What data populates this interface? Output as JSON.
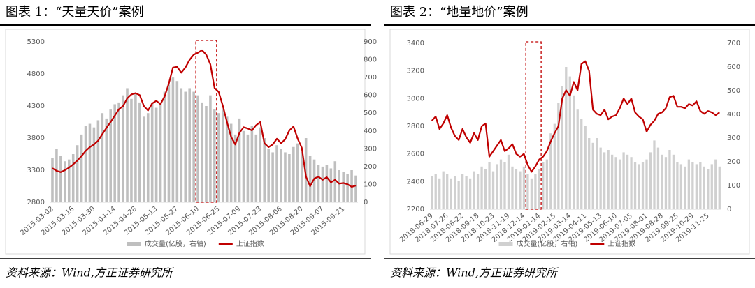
{
  "chart_data": [
    {
      "type": "bar_line",
      "title": "图表 1：“天量天价”案例",
      "source": "资料来源：Wind,方正证券研究所",
      "categories": [
        "2015-03-02",
        null,
        null,
        null,
        null,
        "2015-03-16",
        null,
        null,
        null,
        null,
        "2015-03-30",
        null,
        null,
        null,
        null,
        "2015-04-14",
        null,
        null,
        null,
        null,
        "2015-04-28",
        null,
        null,
        null,
        null,
        "2015-05-13",
        null,
        null,
        null,
        null,
        "2015-05-27",
        null,
        null,
        null,
        null,
        "2015-06-10",
        null,
        null,
        null,
        null,
        "2015-06-25",
        null,
        null,
        null,
        null,
        "2015-07-09",
        null,
        null,
        null,
        null,
        "2015-07-23",
        null,
        null,
        null,
        null,
        "2015-08-06",
        null,
        null,
        null,
        null,
        "2015-08-20",
        null,
        null,
        null,
        null,
        "2015-09-07",
        null,
        null,
        null,
        null,
        "2015-09-21",
        null,
        null,
        null
      ],
      "series": [
        {
          "name": "成交量(亿股，右轴)",
          "color": "#bfbfbf",
          "axis": "y2",
          "mark": "bar",
          "values": [
            250,
            300,
            260,
            230,
            240,
            270,
            320,
            380,
            430,
            440,
            420,
            460,
            500,
            470,
            520,
            550,
            560,
            600,
            640,
            580,
            610,
            560,
            480,
            500,
            560,
            530,
            560,
            620,
            660,
            700,
            680,
            640,
            620,
            640,
            620,
            600,
            560,
            540,
            600,
            520,
            500,
            520,
            480,
            440,
            380,
            470,
            400,
            380,
            430,
            380,
            420,
            360,
            300,
            280,
            320,
            300,
            280,
            270,
            310,
            330,
            280,
            360,
            260,
            240,
            210,
            200,
            210,
            190,
            230,
            180,
            170,
            160,
            180,
            150
          ]
        },
        {
          "name": "上证指数",
          "color": "#c00000",
          "mark": "line",
          "values": [
            3330,
            3290,
            3270,
            3300,
            3340,
            3390,
            3450,
            3520,
            3600,
            3660,
            3700,
            3760,
            3860,
            3960,
            4050,
            4150,
            4250,
            4300,
            4420,
            4480,
            4500,
            4470,
            4300,
            4230,
            4340,
            4380,
            4330,
            4450,
            4650,
            4900,
            4910,
            4820,
            4900,
            5020,
            5100,
            5130,
            5170,
            5100,
            4950,
            4580,
            4520,
            4300,
            4050,
            3820,
            3700,
            3880,
            3970,
            3950,
            3920,
            4000,
            4050,
            3720,
            3660,
            3700,
            3790,
            3720,
            3780,
            3920,
            3980,
            3790,
            3650,
            3200,
            3050,
            3170,
            3200,
            3150,
            3190,
            3110,
            3150,
            3090,
            3100,
            3080,
            3040,
            3060
          ]
        }
      ],
      "ylim": [
        2800,
        5300
      ],
      "yticks": [
        2800,
        3300,
        3800,
        4300,
        4800,
        5300
      ],
      "y2lim": [
        0,
        900
      ],
      "y2ticks": [
        0,
        100,
        200,
        300,
        400,
        500,
        600,
        700,
        800,
        900
      ]
    },
    {
      "type": "bar_line",
      "title": "图表 2：“地量地价”案例",
      "source": "资料来源：Wind,方正证券研究所",
      "categories": [
        "2018-06-29",
        null,
        null,
        null,
        "2018-07-26",
        null,
        null,
        null,
        "2018-08-22",
        null,
        null,
        null,
        "2018-09-18",
        null,
        null,
        null,
        "2018-10-23",
        null,
        null,
        null,
        "2018-11-19",
        null,
        null,
        null,
        "2018-12-14",
        null,
        null,
        null,
        "2019-01-14",
        null,
        null,
        null,
        "2019-02-15",
        null,
        null,
        null,
        "2019-03-14",
        null,
        null,
        null,
        "2019-04-11",
        null,
        null,
        null,
        "2019-05-13",
        null,
        null,
        null,
        "2019-06-10",
        null,
        null,
        null,
        "2019-07-05",
        null,
        null,
        null,
        "2019-08-01",
        null,
        null,
        null,
        "2019-08-28",
        null,
        null,
        null,
        "2019-09-25",
        null,
        null,
        null,
        "2019-10-29",
        null,
        null,
        null,
        "2019-11-25",
        null,
        null,
        null
      ],
      "series": [
        {
          "name": "成交量(亿股，右轴)",
          "color": "#d0d0d0",
          "axis": "y2",
          "mark": "bar",
          "values": [
            140,
            150,
            130,
            160,
            150,
            130,
            140,
            120,
            150,
            140,
            130,
            160,
            150,
            180,
            170,
            200,
            160,
            190,
            210,
            200,
            230,
            180,
            170,
            160,
            180,
            150,
            130,
            150,
            170,
            200,
            210,
            320,
            360,
            450,
            520,
            600,
            560,
            480,
            420,
            380,
            350,
            300,
            280,
            300,
            260,
            240,
            250,
            230,
            220,
            210,
            240,
            230,
            220,
            200,
            190,
            200,
            210,
            240,
            290,
            260,
            230,
            220,
            250,
            230,
            200,
            190,
            180,
            210,
            200,
            190,
            200,
            180,
            170,
            190,
            210,
            180
          ]
        },
        {
          "name": "上证指数",
          "color": "#c00000",
          "mark": "line",
          "values": [
            2840,
            2870,
            2780,
            2820,
            2880,
            2790,
            2730,
            2700,
            2780,
            2720,
            2680,
            2750,
            2700,
            2800,
            2820,
            2580,
            2620,
            2660,
            2700,
            2620,
            2640,
            2670,
            2600,
            2580,
            2600,
            2520,
            2470,
            2510,
            2560,
            2580,
            2620,
            2690,
            2750,
            2800,
            3000,
            3060,
            3020,
            3120,
            3060,
            3250,
            3270,
            3200,
            2920,
            2890,
            2880,
            2920,
            2850,
            2870,
            2880,
            2930,
            3000,
            2960,
            3000,
            2900,
            2870,
            2850,
            2760,
            2810,
            2840,
            2890,
            2900,
            2930,
            3010,
            3020,
            2940,
            2940,
            2930,
            2960,
            2950,
            2980,
            2910,
            2890,
            2910,
            2900,
            2880,
            2900
          ]
        }
      ],
      "ylim": [
        2200,
        3400
      ],
      "yticks": [
        2200,
        2400,
        2600,
        2800,
        3000,
        3200,
        3400
      ],
      "y2lim": [
        0,
        700
      ],
      "y2ticks": [
        0,
        100,
        200,
        300,
        400,
        500,
        600,
        700
      ]
    }
  ]
}
